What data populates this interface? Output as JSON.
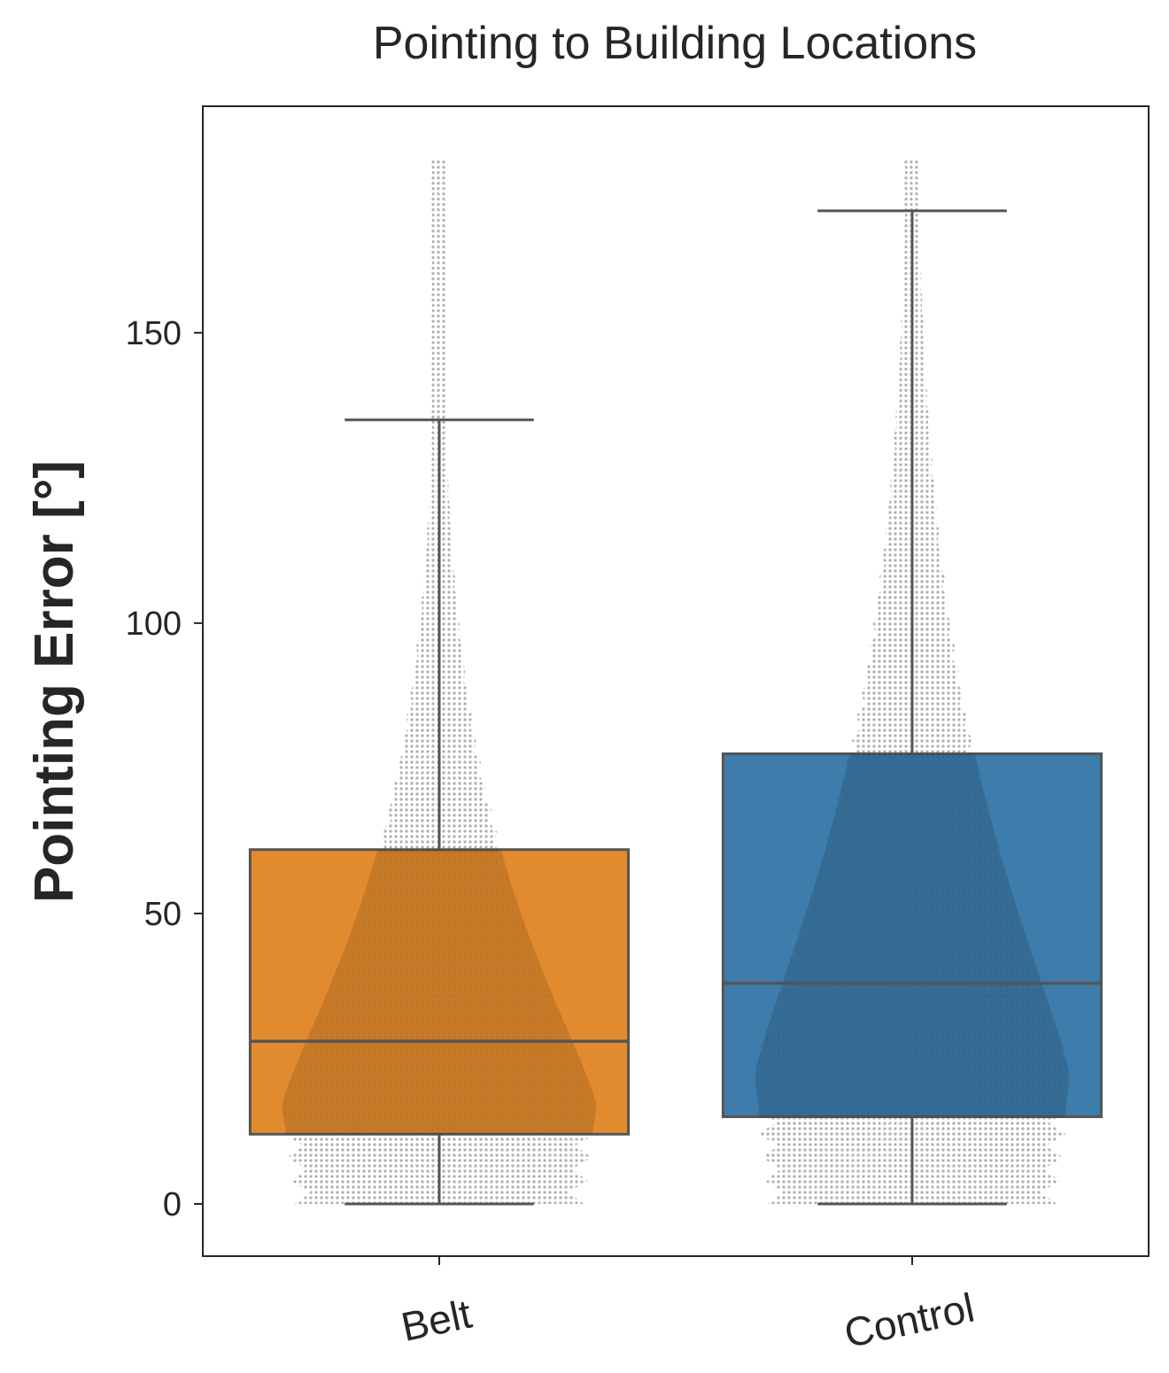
{
  "chart_data": {
    "type": "box",
    "title": "Pointing to Building Locations",
    "xlabel": "",
    "ylabel": "Pointing Error [°]",
    "ylim": [
      -9,
      189
    ],
    "yticks": [
      0,
      50,
      100,
      150
    ],
    "categories": [
      "Belt",
      "Control"
    ],
    "series": [
      {
        "category": "Belt",
        "color": "#e0821e",
        "whisker_low": 0,
        "q1": 12,
        "median": 28,
        "q3": 61,
        "whisker_high": 135,
        "swarm_max": 180
      },
      {
        "category": "Control",
        "color": "#2e72a5",
        "whisker_low": 0,
        "q1": 15,
        "median": 38,
        "q3": 77.5,
        "whisker_high": 171,
        "swarm_max": 180
      }
    ],
    "overlay": "swarm points (gray)",
    "grid": false,
    "legend": "none"
  }
}
